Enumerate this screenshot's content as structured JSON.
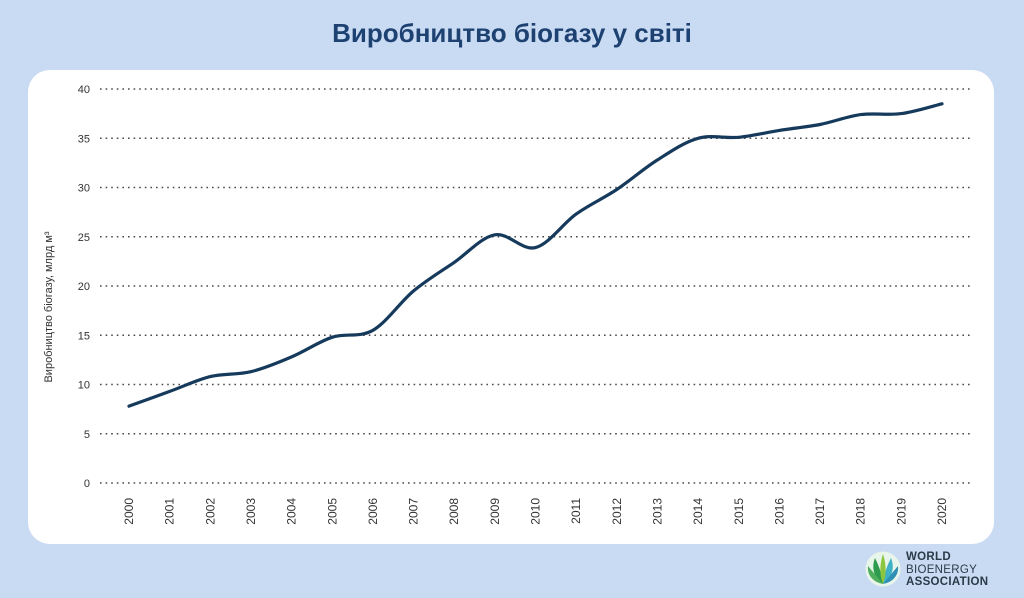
{
  "page": {
    "title": "Виробництво біогазу у світі"
  },
  "logo": {
    "line1": "WORLD",
    "line2": "BIOENERGY",
    "line3": "ASSOCIATION",
    "icon": "leaf-globe-icon",
    "colors": [
      "#2e9b4f",
      "#3fb1c6",
      "#8cc63f"
    ]
  },
  "chart_data": {
    "type": "line",
    "title": "Виробництво біогазу у світі",
    "xlabel": "",
    "ylabel": "Виробництво біогазу, млрд м³",
    "x": [
      "2000",
      "2001",
      "2002",
      "2003",
      "2004",
      "2005",
      "2006",
      "2007",
      "2008",
      "2009",
      "2010",
      "2011",
      "2012",
      "2013",
      "2014",
      "2015",
      "2016",
      "2017",
      "2018",
      "2019",
      "2020"
    ],
    "ylim": [
      0,
      40
    ],
    "yticks": [
      0,
      5,
      10,
      15,
      20,
      25,
      30,
      35,
      40
    ],
    "grid": true,
    "legend": "none",
    "series": [
      {
        "color": "#163a5c",
        "values": [
          7.8,
          9.3,
          10.8,
          11.3,
          12.8,
          14.8,
          15.5,
          19.5,
          22.4,
          25.2,
          23.9,
          27.3,
          29.8,
          32.8,
          35.0,
          35.1,
          35.8,
          36.4,
          37.4,
          37.5,
          38.5
        ]
      }
    ]
  }
}
